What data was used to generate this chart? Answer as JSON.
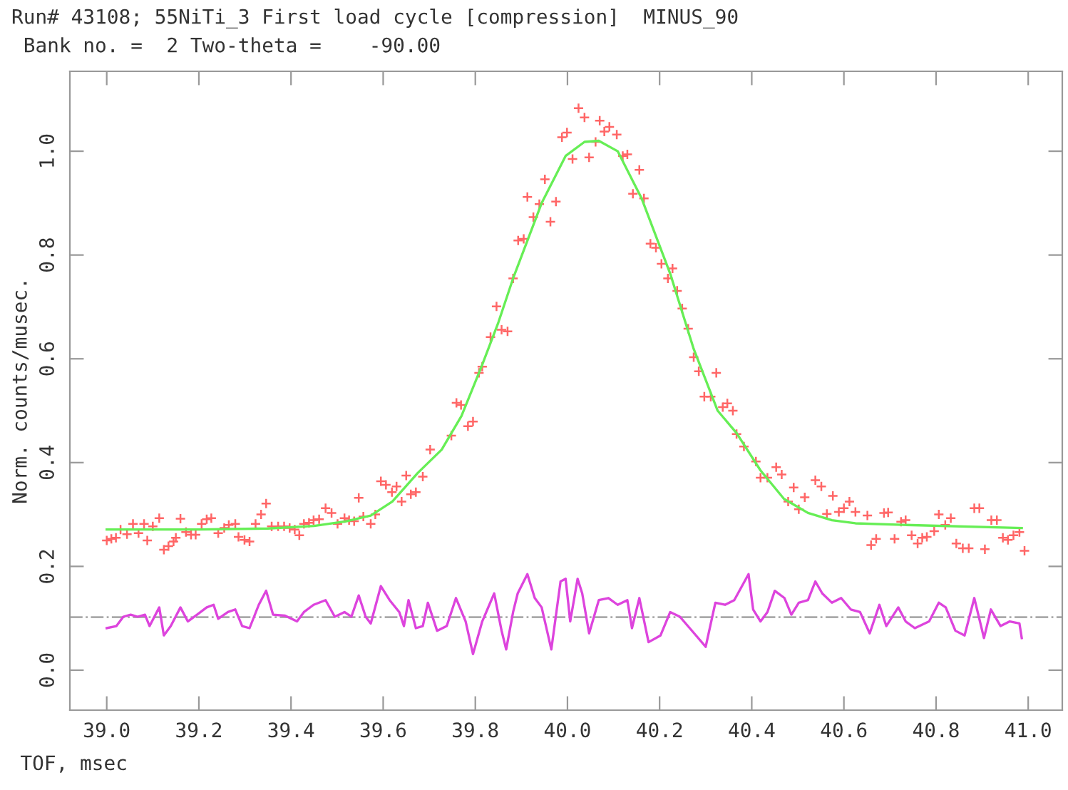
{
  "chart_data": {
    "type": "scatter",
    "title": "Run# 43108; 55NiTi_3 First load cycle [compression]  MINUS_90",
    "subtitle": " Bank no. =  2 Two-theta =    -90.00",
    "xlabel": "TOF, msec",
    "ylabel": "Norm. counts/musec.",
    "xlim": [
      38.92,
      41.074
    ],
    "ylim": [
      -0.077,
      1.154
    ],
    "xticks": [
      {
        "value": 39.0,
        "label": "39.0"
      },
      {
        "value": 39.2,
        "label": "39.2"
      },
      {
        "value": 39.4,
        "label": "39.4"
      },
      {
        "value": 39.6,
        "label": "39.6"
      },
      {
        "value": 39.8,
        "label": "39.8"
      },
      {
        "value": 40.0,
        "label": "40.0"
      },
      {
        "value": 40.2,
        "label": "40.2"
      },
      {
        "value": 40.4,
        "label": "40.4"
      },
      {
        "value": 40.6,
        "label": "40.6"
      },
      {
        "value": 40.8,
        "label": "40.8"
      },
      {
        "value": 41.0,
        "label": "41.0"
      }
    ],
    "yticks": [
      {
        "value": 0,
        "label": "0.0"
      },
      {
        "value": 0.2,
        "label": "0.2"
      },
      {
        "value": 0.4,
        "label": "0.4"
      },
      {
        "value": 0.6,
        "label": "0.6"
      },
      {
        "value": 0.8,
        "label": "0.8"
      },
      {
        "value": 1.0,
        "label": "1.0"
      }
    ],
    "grid": false,
    "legend": false,
    "ref_lines": [
      {
        "axis": "y",
        "value": 0.102,
        "color": "#aaaaaa",
        "line_style": "dashdot"
      }
    ],
    "series": [
      {
        "marker": "cross",
        "color": "#ff6666",
        "x": [
          39.0,
          39.01,
          39.02,
          39.03,
          39.044,
          39.057,
          39.069,
          39.081,
          39.088,
          39.1,
          39.114,
          39.124,
          39.134,
          39.145,
          39.15,
          39.16,
          39.172,
          39.183,
          39.193,
          39.206,
          39.217,
          39.227,
          39.242,
          39.255,
          39.265,
          39.279,
          39.286,
          39.299,
          39.31,
          39.323,
          39.335,
          39.346,
          39.358,
          39.372,
          39.385,
          39.397,
          39.408,
          39.418,
          39.428,
          39.439,
          39.449,
          39.461,
          39.475,
          39.488,
          39.501,
          39.516,
          39.526,
          39.537,
          39.547,
          39.557,
          39.573,
          39.583,
          39.595,
          39.606,
          39.619,
          39.629,
          39.64,
          39.65,
          39.66,
          39.671,
          39.686,
          39.702,
          39.748,
          39.759,
          39.769,
          39.784,
          39.795,
          39.808,
          39.815,
          39.833,
          39.846,
          39.857,
          39.87,
          39.882,
          39.893,
          39.905,
          39.913,
          39.926,
          39.939,
          39.951,
          39.963,
          39.975,
          39.988,
          39.999,
          40.011,
          40.024,
          40.037,
          40.047,
          40.061,
          40.07,
          40.08,
          40.091,
          40.107,
          40.12,
          40.13,
          40.142,
          40.156,
          40.166,
          40.18,
          40.192,
          40.204,
          40.218,
          40.228,
          40.238,
          40.249,
          40.262,
          40.274,
          40.285,
          40.297,
          40.311,
          40.323,
          40.337,
          40.347,
          40.359,
          40.367,
          40.383,
          40.409,
          40.419,
          40.434,
          40.453,
          40.465,
          40.479,
          40.491,
          40.502,
          40.515,
          40.538,
          40.551,
          40.563,
          40.576,
          40.589,
          40.6,
          40.612,
          40.625,
          40.651,
          40.659,
          40.67,
          40.687,
          40.696,
          40.71,
          40.724,
          40.734,
          40.747,
          40.76,
          40.77,
          40.78,
          40.796,
          40.806,
          40.82,
          40.832,
          40.844,
          40.858,
          40.871,
          40.883,
          40.894,
          40.906,
          40.92,
          40.932,
          40.945,
          40.956,
          40.968,
          40.981,
          40.992
        ],
        "values": [
          0.25,
          0.253,
          0.255,
          0.271,
          0.262,
          0.282,
          0.264,
          0.282,
          0.25,
          0.277,
          0.293,
          0.232,
          0.239,
          0.248,
          0.255,
          0.292,
          0.266,
          0.261,
          0.261,
          0.282,
          0.291,
          0.293,
          0.264,
          0.274,
          0.28,
          0.282,
          0.257,
          0.251,
          0.248,
          0.282,
          0.3,
          0.321,
          0.277,
          0.277,
          0.277,
          0.274,
          0.271,
          0.26,
          0.282,
          0.284,
          0.289,
          0.291,
          0.312,
          0.303,
          0.282,
          0.293,
          0.289,
          0.287,
          0.332,
          0.296,
          0.282,
          0.3,
          0.364,
          0.357,
          0.343,
          0.354,
          0.325,
          0.375,
          0.339,
          0.343,
          0.373,
          0.425,
          0.452,
          0.515,
          0.511,
          0.47,
          0.479,
          0.573,
          0.585,
          0.642,
          0.701,
          0.656,
          0.653,
          0.755,
          0.828,
          0.831,
          0.912,
          0.873,
          0.898,
          0.946,
          0.864,
          0.903,
          1.027,
          1.036,
          0.985,
          1.083,
          1.065,
          0.988,
          1.018,
          1.059,
          1.038,
          1.047,
          1.032,
          0.991,
          0.994,
          0.918,
          0.964,
          0.909,
          0.822,
          0.814,
          0.783,
          0.755,
          0.774,
          0.731,
          0.697,
          0.658,
          0.603,
          0.576,
          0.527,
          0.527,
          0.573,
          0.507,
          0.514,
          0.5,
          0.455,
          0.431,
          0.402,
          0.371,
          0.371,
          0.391,
          0.377,
          0.325,
          0.352,
          0.31,
          0.333,
          0.366,
          0.354,
          0.301,
          0.336,
          0.305,
          0.312,
          0.325,
          0.305,
          0.298,
          0.241,
          0.253,
          0.303,
          0.304,
          0.253,
          0.286,
          0.289,
          0.26,
          0.244,
          0.255,
          0.257,
          0.268,
          0.3,
          0.28,
          0.293,
          0.244,
          0.235,
          0.235,
          0.312,
          0.312,
          0.233,
          0.289,
          0.289,
          0.255,
          0.251,
          0.26,
          0.266,
          0.23
        ]
      },
      {
        "type": "line",
        "color": "#66ee55",
        "x": [
          39.0,
          39.2,
          39.35,
          39.45,
          39.52,
          39.573,
          39.62,
          39.675,
          39.727,
          39.77,
          39.813,
          39.85,
          39.882,
          39.944,
          39.996,
          40.037,
          40.068,
          40.109,
          40.161,
          40.223,
          40.274,
          40.326,
          40.367,
          40.419,
          40.47,
          40.522,
          40.574,
          40.625,
          40.728,
          40.986
        ],
        "values": [
          0.271,
          0.271,
          0.273,
          0.278,
          0.287,
          0.298,
          0.325,
          0.38,
          0.425,
          0.49,
          0.584,
          0.67,
          0.755,
          0.9,
          0.991,
          1.018,
          1.02,
          1.0,
          0.909,
          0.764,
          0.619,
          0.5,
          0.457,
          0.385,
          0.33,
          0.303,
          0.289,
          0.283,
          0.28,
          0.274
        ]
      },
      {
        "type": "line",
        "color": "#dd44dd",
        "x": [
          39.0,
          39.021,
          39.036,
          39.052,
          39.067,
          39.083,
          39.093,
          39.114,
          39.124,
          39.139,
          39.16,
          39.176,
          39.196,
          39.217,
          39.232,
          39.242,
          39.263,
          39.279,
          39.294,
          39.31,
          39.33,
          39.346,
          39.361,
          39.387,
          39.413,
          39.428,
          39.449,
          39.475,
          39.495,
          39.516,
          39.531,
          39.547,
          39.562,
          39.573,
          39.595,
          39.614,
          39.635,
          39.645,
          39.655,
          39.671,
          39.686,
          39.697,
          39.717,
          39.738,
          39.758,
          39.779,
          39.795,
          39.815,
          39.841,
          39.857,
          39.867,
          39.882,
          39.892,
          39.913,
          39.929,
          39.944,
          39.965,
          39.985,
          39.996,
          40.006,
          40.022,
          40.032,
          40.047,
          40.068,
          40.089,
          40.109,
          40.13,
          40.14,
          40.156,
          40.176,
          40.202,
          40.223,
          40.244,
          40.275,
          40.3,
          40.321,
          40.342,
          40.362,
          40.393,
          40.403,
          40.419,
          40.434,
          40.45,
          40.471,
          40.486,
          40.502,
          40.522,
          40.538,
          40.553,
          40.574,
          40.594,
          40.615,
          40.635,
          40.656,
          40.677,
          40.692,
          40.718,
          40.734,
          40.754,
          40.785,
          40.806,
          40.821,
          40.842,
          40.862,
          40.883,
          40.904,
          40.919,
          40.94,
          40.96,
          40.981,
          40.986
        ],
        "values": [
          0.081,
          0.085,
          0.103,
          0.107,
          0.103,
          0.107,
          0.085,
          0.121,
          0.067,
          0.085,
          0.121,
          0.094,
          0.107,
          0.121,
          0.126,
          0.099,
          0.112,
          0.117,
          0.085,
          0.081,
          0.126,
          0.153,
          0.107,
          0.105,
          0.094,
          0.112,
          0.126,
          0.135,
          0.103,
          0.112,
          0.103,
          0.144,
          0.103,
          0.09,
          0.162,
          0.135,
          0.112,
          0.085,
          0.135,
          0.081,
          0.085,
          0.13,
          0.076,
          0.085,
          0.139,
          0.094,
          0.031,
          0.094,
          0.148,
          0.076,
          0.04,
          0.112,
          0.148,
          0.185,
          0.139,
          0.121,
          0.04,
          0.171,
          0.176,
          0.094,
          0.176,
          0.148,
          0.071,
          0.135,
          0.139,
          0.126,
          0.135,
          0.081,
          0.139,
          0.054,
          0.067,
          0.112,
          0.103,
          0.071,
          0.045,
          0.13,
          0.126,
          0.135,
          0.185,
          0.117,
          0.094,
          0.112,
          0.153,
          0.139,
          0.107,
          0.13,
          0.135,
          0.171,
          0.148,
          0.13,
          0.139,
          0.117,
          0.112,
          0.071,
          0.126,
          0.085,
          0.121,
          0.094,
          0.081,
          0.094,
          0.13,
          0.121,
          0.076,
          0.067,
          0.139,
          0.062,
          0.117,
          0.085,
          0.094,
          0.09,
          0.062
        ]
      }
    ]
  }
}
